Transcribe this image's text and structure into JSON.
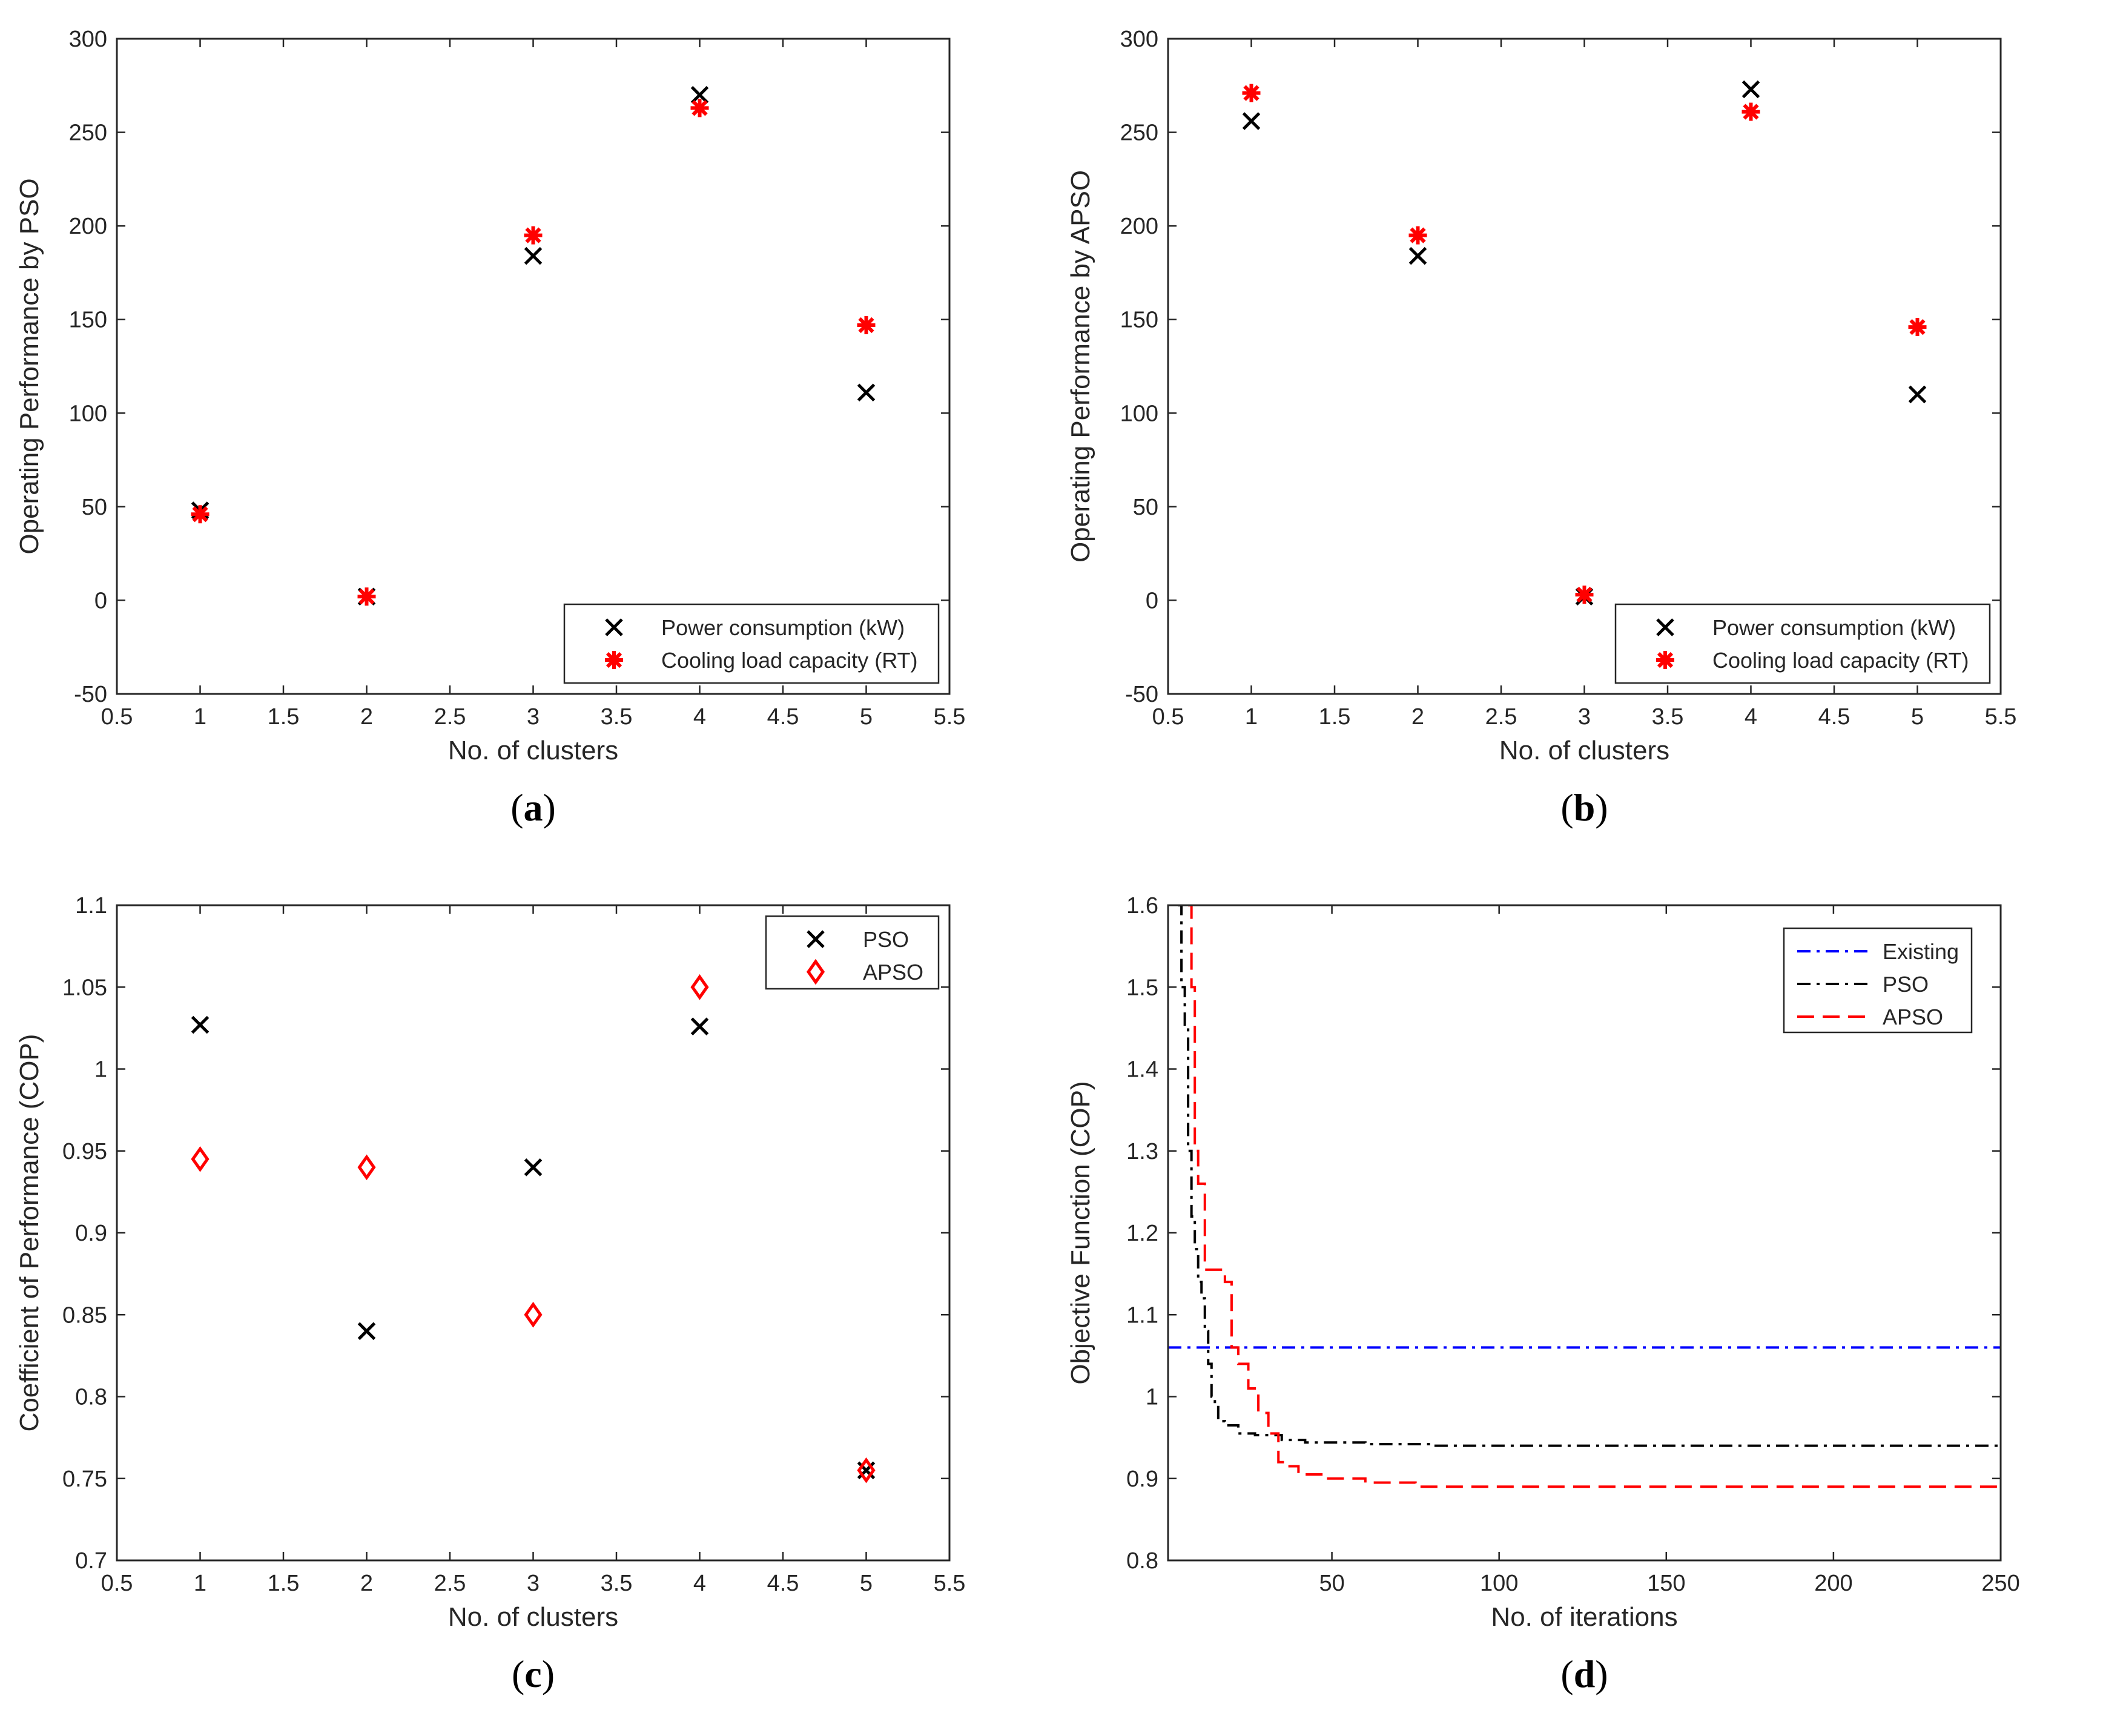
{
  "colors": {
    "black": "#000000",
    "red": "#ff0000",
    "blue": "#0000ff",
    "axis": "#262626"
  },
  "chart_data": [
    {
      "id": "a",
      "type": "scatter",
      "panel_label": "a",
      "xlabel": "No. of clusters",
      "ylabel": "Operating Performance by PSO",
      "xlim": [
        0.5,
        5.5
      ],
      "ylim": [
        -50,
        300
      ],
      "xticks": [
        0.5,
        1,
        1.5,
        2,
        2.5,
        3,
        3.5,
        4,
        4.5,
        5,
        5.5
      ],
      "xtick_labels": [
        "0.5",
        "1",
        "1.5",
        "2",
        "2.5",
        "3",
        "3.5",
        "4",
        "4.5",
        "5",
        "5.5"
      ],
      "yticks": [
        -50,
        0,
        50,
        100,
        150,
        200,
        250,
        300
      ],
      "ytick_labels": [
        "-50",
        "0",
        "50",
        "100",
        "150",
        "200",
        "250",
        "300"
      ],
      "legend_position": "bottom-right",
      "series": [
        {
          "name": "Power consumption (kW)",
          "marker": "x",
          "color": "#000000",
          "x": [
            1,
            2,
            3,
            4,
            5
          ],
          "y": [
            48,
            2,
            184,
            270,
            111
          ]
        },
        {
          "name": "Cooling load capacity (RT)",
          "marker": "asterisk",
          "color": "#ff0000",
          "x": [
            1,
            2,
            3,
            4,
            5
          ],
          "y": [
            46,
            2,
            195,
            263,
            147
          ]
        }
      ]
    },
    {
      "id": "b",
      "type": "scatter",
      "panel_label": "b",
      "xlabel": "No. of clusters",
      "ylabel": "Operating Performance by APSO",
      "xlim": [
        0.5,
        5.5
      ],
      "ylim": [
        -50,
        300
      ],
      "xticks": [
        0.5,
        1,
        1.5,
        2,
        2.5,
        3,
        3.5,
        4,
        4.5,
        5,
        5.5
      ],
      "xtick_labels": [
        "0.5",
        "1",
        "1.5",
        "2",
        "2.5",
        "3",
        "3.5",
        "4",
        "4.5",
        "5",
        "5.5"
      ],
      "yticks": [
        -50,
        0,
        50,
        100,
        150,
        200,
        250,
        300
      ],
      "ytick_labels": [
        "-50",
        "0",
        "50",
        "100",
        "150",
        "200",
        "250",
        "300"
      ],
      "legend_position": "bottom-right",
      "series": [
        {
          "name": "Power consumption (kW)",
          "marker": "x",
          "color": "#000000",
          "x": [
            1,
            2,
            3,
            4,
            5
          ],
          "y": [
            256,
            184,
            2,
            273,
            110
          ]
        },
        {
          "name": "Cooling load capacity (RT)",
          "marker": "asterisk",
          "color": "#ff0000",
          "x": [
            1,
            2,
            3,
            4,
            5
          ],
          "y": [
            271,
            195,
            3,
            261,
            146
          ]
        }
      ]
    },
    {
      "id": "c",
      "type": "scatter",
      "panel_label": "c",
      "xlabel": "No. of clusters",
      "ylabel": "Coefficient of Performance (COP)",
      "xlim": [
        0.5,
        5.5
      ],
      "ylim": [
        0.7,
        1.1
      ],
      "xticks": [
        0.5,
        1,
        1.5,
        2,
        2.5,
        3,
        3.5,
        4,
        4.5,
        5,
        5.5
      ],
      "xtick_labels": [
        "0.5",
        "1",
        "1.5",
        "2",
        "2.5",
        "3",
        "3.5",
        "4",
        "4.5",
        "5",
        "5.5"
      ],
      "yticks": [
        0.7,
        0.75,
        0.8,
        0.85,
        0.9,
        0.95,
        1,
        1.05,
        1.1
      ],
      "ytick_labels": [
        "0.7",
        "0.75",
        "0.8",
        "0.85",
        "0.9",
        "0.95",
        "1",
        "1.05",
        "1.1"
      ],
      "legend_position": "top-right",
      "series": [
        {
          "name": "PSO",
          "marker": "x",
          "color": "#000000",
          "x": [
            1,
            2,
            3,
            4,
            5
          ],
          "y": [
            1.027,
            0.84,
            0.94,
            1.026,
            0.755
          ]
        },
        {
          "name": "APSO",
          "marker": "diamond",
          "color": "#ff0000",
          "x": [
            1,
            2,
            3,
            4,
            5
          ],
          "y": [
            0.945,
            0.94,
            0.85,
            1.05,
            0.755
          ]
        }
      ]
    },
    {
      "id": "d",
      "type": "line",
      "panel_label": "d",
      "xlabel": "No. of iterations",
      "ylabel": "Objective Function (COP)",
      "xlim": [
        1,
        250
      ],
      "ylim": [
        0.8,
        1.6
      ],
      "xticks": [
        50,
        100,
        150,
        200,
        250
      ],
      "xtick_labels": [
        "50",
        "100",
        "150",
        "200",
        "250"
      ],
      "yticks": [
        0.8,
        0.9,
        1,
        1.1,
        1.2,
        1.3,
        1.4,
        1.5,
        1.6
      ],
      "ytick_labels": [
        "0.8",
        "0.9",
        "1",
        "1.1",
        "1.2",
        "1.3",
        "1.4",
        "1.5",
        "1.6"
      ],
      "legend_position": "top-right",
      "series": [
        {
          "name": "Existing",
          "style": "dashdot",
          "color": "#0000ff",
          "x": [
            1,
            250
          ],
          "y": [
            1.06,
            1.06
          ]
        },
        {
          "name": "PSO",
          "style": "dashdot",
          "color": "#000000",
          "x": [
            4,
            5,
            5,
            6,
            6,
            7,
            7,
            8,
            8,
            9,
            9,
            10,
            10,
            11,
            11,
            12,
            12,
            13,
            13,
            14,
            14,
            15,
            15,
            16,
            16,
            18,
            18,
            22,
            22,
            27,
            27,
            35,
            35,
            42,
            42,
            60,
            60,
            80,
            80,
            250
          ],
          "y": [
            1.6,
            1.6,
            1.5,
            1.5,
            1.45,
            1.45,
            1.3,
            1.3,
            1.22,
            1.22,
            1.18,
            1.18,
            1.14,
            1.14,
            1.12,
            1.12,
            1.08,
            1.08,
            1.04,
            1.04,
            1.0,
            1.0,
            0.99,
            0.99,
            0.97,
            0.97,
            0.965,
            0.965,
            0.955,
            0.955,
            0.953,
            0.953,
            0.947,
            0.947,
            0.944,
            0.944,
            0.942,
            0.942,
            0.94,
            0.94
          ]
        },
        {
          "name": "APSO",
          "style": "dashed",
          "color": "#ff0000",
          "x": [
            7,
            8,
            8,
            9,
            9,
            10,
            10,
            12,
            12,
            18,
            18,
            20,
            20,
            22,
            22,
            25,
            25,
            28,
            28,
            31,
            31,
            34,
            34,
            36,
            36,
            40,
            40,
            48,
            48,
            60,
            60,
            75,
            75,
            250
          ],
          "y": [
            1.6,
            1.6,
            1.5,
            1.5,
            1.3,
            1.3,
            1.26,
            1.26,
            1.155,
            1.155,
            1.14,
            1.14,
            1.06,
            1.06,
            1.04,
            1.04,
            1.01,
            1.01,
            0.98,
            0.98,
            0.955,
            0.955,
            0.92,
            0.92,
            0.915,
            0.915,
            0.905,
            0.905,
            0.9,
            0.9,
            0.895,
            0.895,
            0.89,
            0.89
          ]
        }
      ]
    }
  ]
}
